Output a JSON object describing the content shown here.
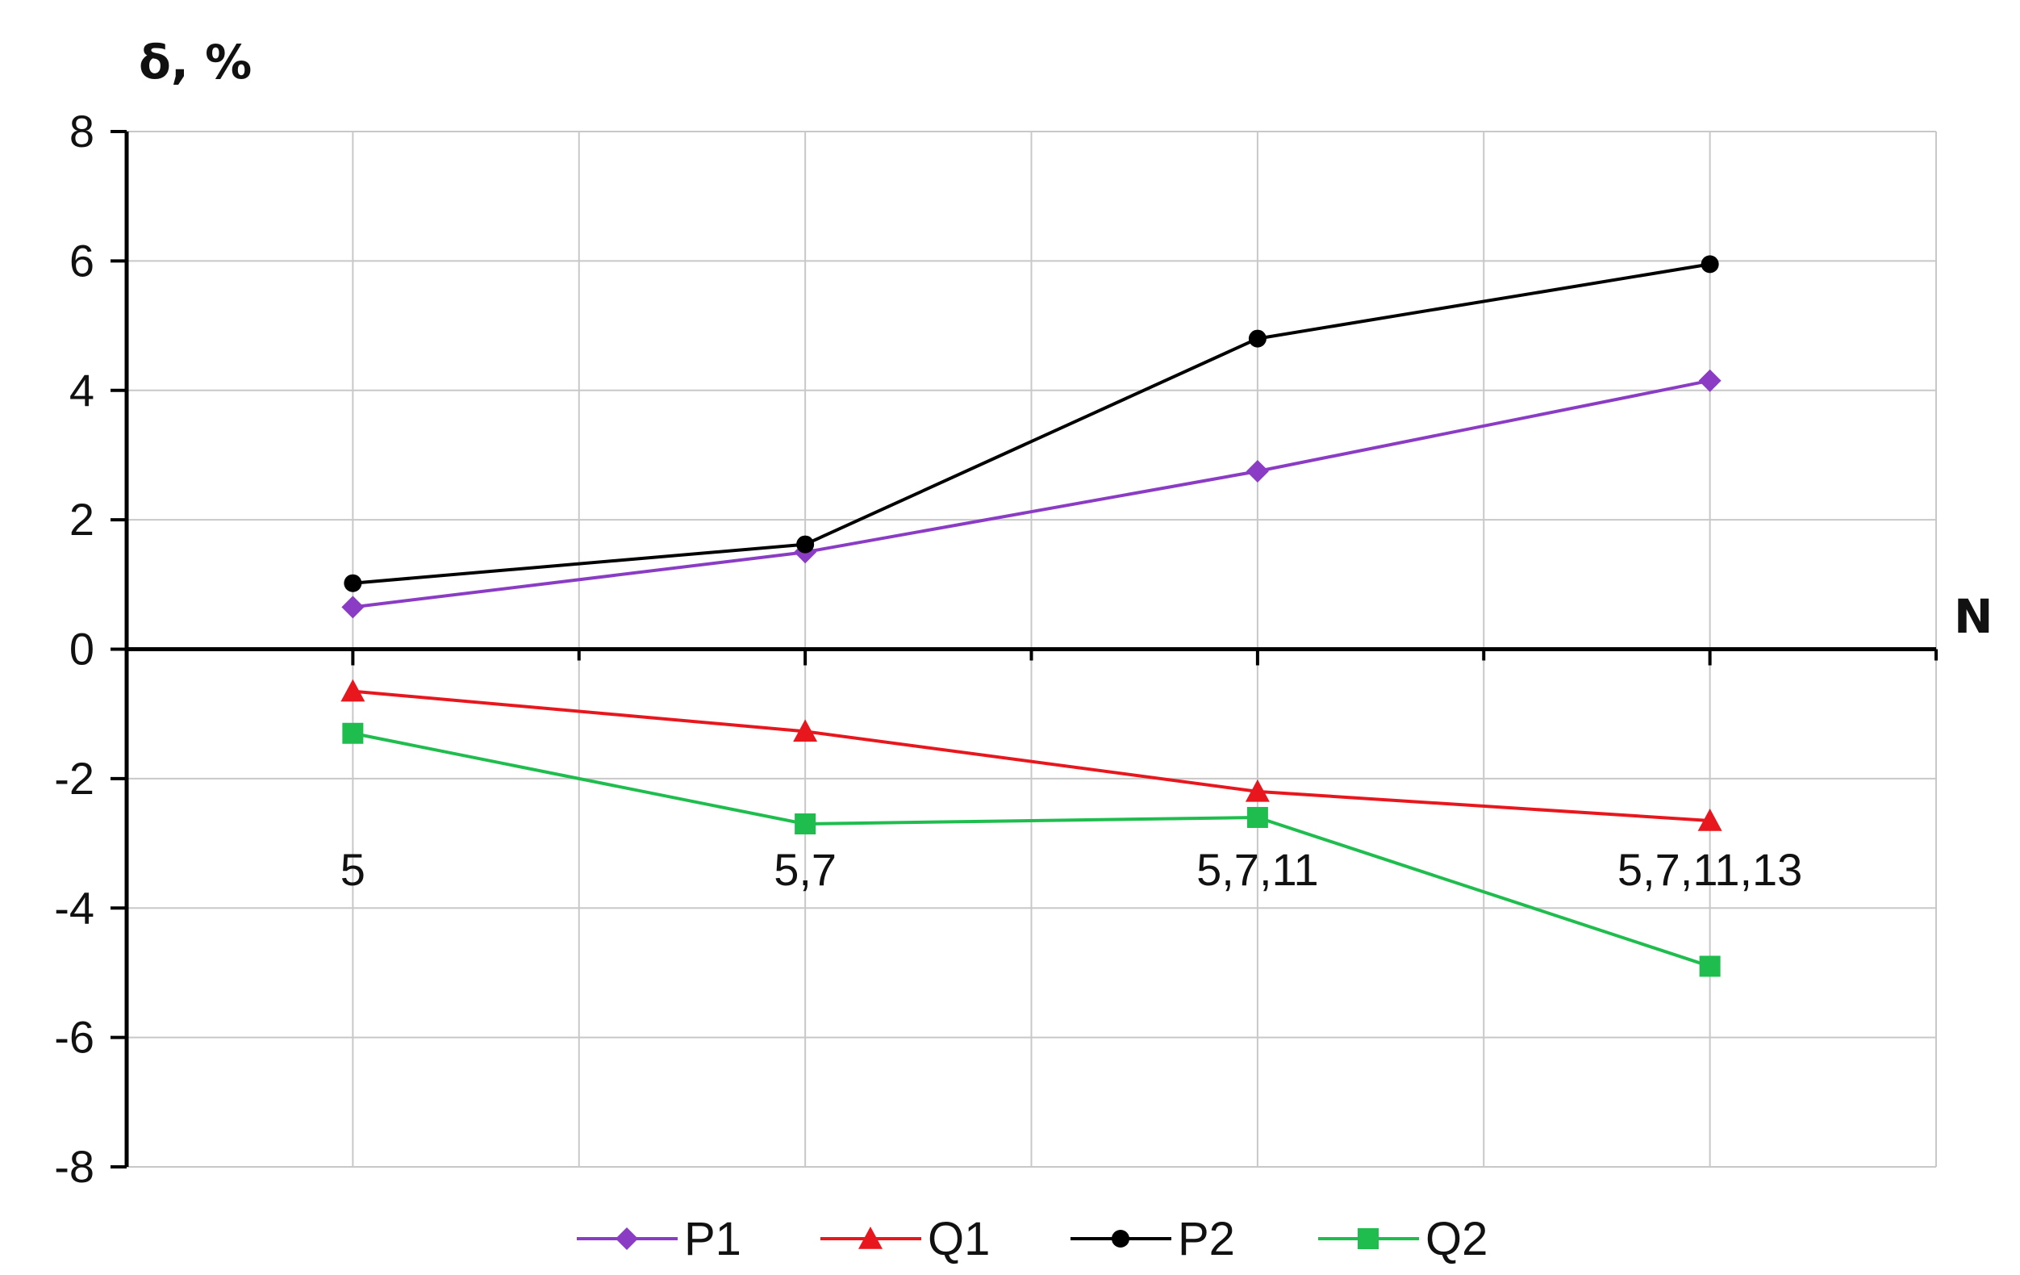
{
  "chart_data": {
    "type": "line",
    "categories": [
      "5",
      "5,7",
      "5,7,11",
      "5,7,11,13"
    ],
    "series": [
      {
        "name": "P1",
        "values": [
          0.65,
          1.5,
          2.75,
          4.15
        ],
        "color": "#8a3cc4",
        "marker": "diamond"
      },
      {
        "name": "Q1",
        "values": [
          -0.65,
          -1.27,
          -2.2,
          -2.65
        ],
        "color": "#e8171e",
        "marker": "triangle"
      },
      {
        "name": "P2",
        "values": [
          1.02,
          1.62,
          4.8,
          5.95
        ],
        "color": "#000000",
        "marker": "circle"
      },
      {
        "name": "Q2",
        "values": [
          -1.3,
          -2.7,
          -2.6,
          -4.9
        ],
        "color": "#1fbd4e",
        "marker": "square"
      }
    ],
    "ylabel": "δ, %",
    "xlabel": "N",
    "ylim": [
      -8,
      8
    ],
    "yticks": [
      "8",
      "6",
      "4",
      "2",
      "0",
      "-2",
      "-4",
      "-6",
      "-8"
    ],
    "grid": true,
    "legend_position": "bottom"
  }
}
